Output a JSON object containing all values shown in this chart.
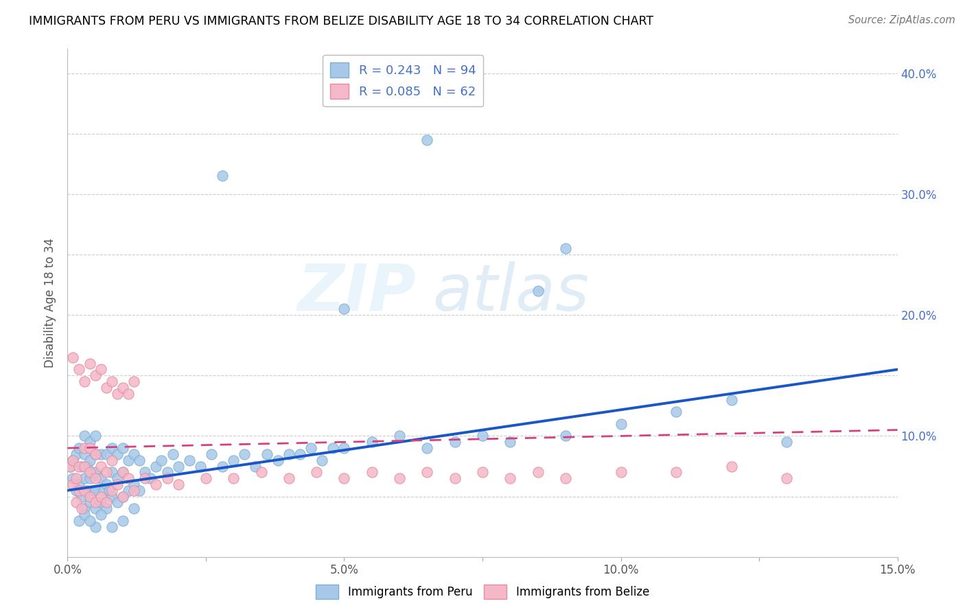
{
  "title": "IMMIGRANTS FROM PERU VS IMMIGRANTS FROM BELIZE DISABILITY AGE 18 TO 34 CORRELATION CHART",
  "source": "Source: ZipAtlas.com",
  "ylabel": "Disability Age 18 to 34",
  "xlim": [
    0.0,
    0.15
  ],
  "ylim": [
    0.0,
    0.42
  ],
  "xtick_positions": [
    0.0,
    0.025,
    0.05,
    0.075,
    0.1,
    0.125,
    0.15
  ],
  "xtick_labels": [
    "0.0%",
    "",
    "5.0%",
    "",
    "10.0%",
    "",
    "15.0%"
  ],
  "ytick_positions": [
    0.0,
    0.05,
    0.1,
    0.15,
    0.2,
    0.25,
    0.3,
    0.35,
    0.4
  ],
  "ytick_labels_right": [
    "",
    "",
    "10.0%",
    "",
    "20.0%",
    "",
    "30.0%",
    "",
    "40.0%"
  ],
  "peru_color": "#a8c8e8",
  "peru_edge_color": "#7bafd4",
  "belize_color": "#f4b8c8",
  "belize_edge_color": "#e88aa0",
  "peru_line_color": "#1a56c4",
  "belize_line_color": "#d44080",
  "peru_R": 0.243,
  "peru_N": 94,
  "belize_R": 0.085,
  "belize_N": 62,
  "watermark_zip": "ZIP",
  "watermark_atlas": "atlas",
  "legend_label_peru": "Immigrants from Peru",
  "legend_label_belize": "Immigrants from Belize",
  "peru_line_x0": 0.0,
  "peru_line_y0": 0.055,
  "peru_line_x1": 0.15,
  "peru_line_y1": 0.155,
  "belize_line_x0": 0.0,
  "belize_line_y0": 0.09,
  "belize_line_x1": 0.15,
  "belize_line_y1": 0.105,
  "peru_scatter_x": [
    0.0005,
    0.001,
    0.001,
    0.0015,
    0.0015,
    0.002,
    0.002,
    0.0025,
    0.0025,
    0.003,
    0.003,
    0.003,
    0.003,
    0.0035,
    0.0035,
    0.004,
    0.004,
    0.004,
    0.004,
    0.0045,
    0.005,
    0.005,
    0.005,
    0.005,
    0.005,
    0.006,
    0.006,
    0.006,
    0.0065,
    0.007,
    0.007,
    0.007,
    0.0075,
    0.008,
    0.008,
    0.008,
    0.009,
    0.009,
    0.009,
    0.01,
    0.01,
    0.01,
    0.011,
    0.011,
    0.012,
    0.012,
    0.013,
    0.013,
    0.014,
    0.015,
    0.016,
    0.017,
    0.018,
    0.019,
    0.02,
    0.022,
    0.024,
    0.026,
    0.028,
    0.03,
    0.032,
    0.034,
    0.036,
    0.038,
    0.04,
    0.042,
    0.044,
    0.046,
    0.048,
    0.05,
    0.055,
    0.06,
    0.065,
    0.07,
    0.075,
    0.08,
    0.085,
    0.09,
    0.1,
    0.11,
    0.12,
    0.13,
    0.028,
    0.05,
    0.065,
    0.09,
    0.005,
    0.002,
    0.003,
    0.004,
    0.006,
    0.008,
    0.01,
    0.012
  ],
  "peru_scatter_y": [
    0.075,
    0.065,
    0.08,
    0.055,
    0.085,
    0.06,
    0.09,
    0.05,
    0.075,
    0.04,
    0.065,
    0.085,
    0.1,
    0.055,
    0.075,
    0.045,
    0.065,
    0.08,
    0.095,
    0.055,
    0.04,
    0.055,
    0.07,
    0.085,
    0.1,
    0.045,
    0.065,
    0.085,
    0.055,
    0.04,
    0.06,
    0.085,
    0.055,
    0.05,
    0.07,
    0.09,
    0.045,
    0.065,
    0.085,
    0.05,
    0.07,
    0.09,
    0.055,
    0.08,
    0.06,
    0.085,
    0.055,
    0.08,
    0.07,
    0.065,
    0.075,
    0.08,
    0.07,
    0.085,
    0.075,
    0.08,
    0.075,
    0.085,
    0.075,
    0.08,
    0.085,
    0.075,
    0.085,
    0.08,
    0.085,
    0.085,
    0.09,
    0.08,
    0.09,
    0.09,
    0.095,
    0.1,
    0.09,
    0.095,
    0.1,
    0.095,
    0.22,
    0.1,
    0.11,
    0.12,
    0.13,
    0.095,
    0.315,
    0.205,
    0.345,
    0.255,
    0.025,
    0.03,
    0.035,
    0.03,
    0.035,
    0.025,
    0.03,
    0.04
  ],
  "belize_scatter_x": [
    0.0005,
    0.001,
    0.001,
    0.0015,
    0.0015,
    0.002,
    0.002,
    0.0025,
    0.003,
    0.003,
    0.003,
    0.004,
    0.004,
    0.004,
    0.005,
    0.005,
    0.005,
    0.006,
    0.006,
    0.007,
    0.007,
    0.008,
    0.008,
    0.009,
    0.01,
    0.01,
    0.011,
    0.012,
    0.014,
    0.016,
    0.018,
    0.02,
    0.025,
    0.03,
    0.035,
    0.04,
    0.045,
    0.05,
    0.055,
    0.06,
    0.065,
    0.07,
    0.075,
    0.08,
    0.085,
    0.09,
    0.1,
    0.11,
    0.12,
    0.13,
    0.001,
    0.002,
    0.003,
    0.004,
    0.005,
    0.006,
    0.007,
    0.008,
    0.009,
    0.01,
    0.011,
    0.012
  ],
  "belize_scatter_y": [
    0.075,
    0.06,
    0.08,
    0.045,
    0.065,
    0.055,
    0.075,
    0.04,
    0.055,
    0.075,
    0.09,
    0.05,
    0.07,
    0.09,
    0.045,
    0.065,
    0.085,
    0.05,
    0.075,
    0.045,
    0.07,
    0.055,
    0.08,
    0.06,
    0.05,
    0.07,
    0.065,
    0.055,
    0.065,
    0.06,
    0.065,
    0.06,
    0.065,
    0.065,
    0.07,
    0.065,
    0.07,
    0.065,
    0.07,
    0.065,
    0.07,
    0.065,
    0.07,
    0.065,
    0.07,
    0.065,
    0.07,
    0.07,
    0.075,
    0.065,
    0.165,
    0.155,
    0.145,
    0.16,
    0.15,
    0.155,
    0.14,
    0.145,
    0.135,
    0.14,
    0.135,
    0.145
  ]
}
